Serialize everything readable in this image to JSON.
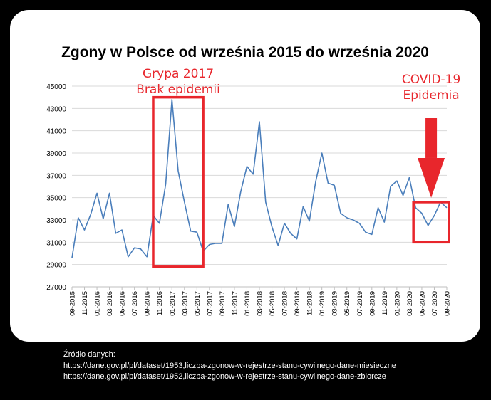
{
  "chart_data": {
    "type": "line",
    "title": "Zgony w Polsce od września 2015 do września 2020",
    "xlabel": "",
    "ylabel": "",
    "ylim": [
      27000,
      45000
    ],
    "yticks": [
      27000,
      29000,
      31000,
      33000,
      35000,
      37000,
      39000,
      41000,
      43000,
      45000
    ],
    "grid": "horizontal",
    "line_color": "#4a7ebb",
    "annotation_color": "#e8262c",
    "x_tick_labels": [
      "09-2015",
      "11-2015",
      "01-2016",
      "03-2016",
      "05-2016",
      "07-2016",
      "09-2016",
      "11-2016",
      "01-2017",
      "03-2017",
      "05-2017",
      "07-2017",
      "09-2017",
      "11-2017",
      "01-2018",
      "03-2018",
      "05-2018",
      "07-2018",
      "09-2018",
      "11-2018",
      "01-2019",
      "03-2019",
      "05-2019",
      "07-2019",
      "09-2019",
      "11-2019",
      "01-2020",
      "03-2020",
      "05-2020",
      "07-2020",
      "09-2020"
    ],
    "x": [
      "09-2015",
      "10-2015",
      "11-2015",
      "12-2015",
      "01-2016",
      "02-2016",
      "03-2016",
      "04-2016",
      "05-2016",
      "06-2016",
      "07-2016",
      "08-2016",
      "09-2016",
      "10-2016",
      "11-2016",
      "12-2016",
      "01-2017",
      "02-2017",
      "03-2017",
      "04-2017",
      "05-2017",
      "06-2017",
      "07-2017",
      "08-2017",
      "09-2017",
      "10-2017",
      "11-2017",
      "12-2017",
      "01-2018",
      "02-2018",
      "03-2018",
      "04-2018",
      "05-2018",
      "06-2018",
      "07-2018",
      "08-2018",
      "09-2018",
      "10-2018",
      "11-2018",
      "12-2018",
      "01-2019",
      "02-2019",
      "03-2019",
      "04-2019",
      "05-2019",
      "06-2019",
      "07-2019",
      "08-2019",
      "09-2019",
      "10-2019",
      "11-2019",
      "12-2019",
      "01-2020",
      "02-2020",
      "03-2020",
      "04-2020",
      "05-2020",
      "06-2020",
      "07-2020",
      "08-2020",
      "09-2020"
    ],
    "values": [
      29600,
      33200,
      32100,
      33500,
      35400,
      33100,
      35400,
      31800,
      32100,
      29700,
      30500,
      30400,
      29700,
      33400,
      32700,
      36200,
      43800,
      37400,
      34600,
      32000,
      31900,
      30200,
      30800,
      30900,
      30900,
      34400,
      32400,
      35500,
      37800,
      37100,
      41800,
      34600,
      32400,
      30700,
      32700,
      31800,
      31300,
      34200,
      32900,
      36400,
      39000,
      36300,
      36100,
      33600,
      33200,
      33000,
      32700,
      31900,
      31700,
      34100,
      32800,
      36000,
      36500,
      35200,
      36800,
      34100,
      33600,
      32500,
      33400,
      34600,
      34100
    ],
    "annotations": [
      {
        "text_lines": [
          "Grypa 2017",
          "Brak epidemii"
        ],
        "box_x": [
          "10-2016",
          "06-2017"
        ],
        "box_y": [
          28800,
          44000
        ]
      },
      {
        "text_lines": [
          "COVID-19",
          "Epidemia"
        ],
        "box_x": [
          "04-2020",
          "09-2020"
        ],
        "box_y": [
          31000,
          34600
        ],
        "arrow": "down"
      }
    ]
  },
  "source": {
    "label": "Źródło danych:",
    "links": [
      "https://dane.gov.pl/pl/dataset/1953,liczba-zgonow-w-rejestrze-stanu-cywilnego-dane-miesieczne",
      "https://dane.gov.pl/pl/dataset/1952,liczba-zgonow-w-rejestrze-stanu-cywilnego-dane-zbiorcze"
    ]
  }
}
